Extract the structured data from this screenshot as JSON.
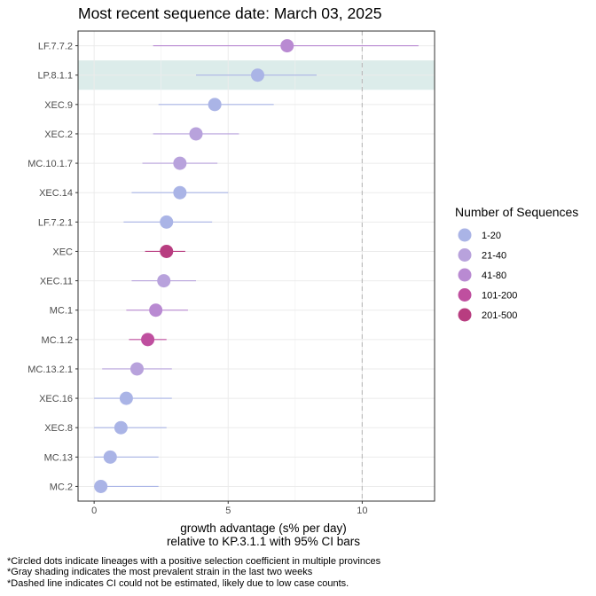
{
  "chart_data": {
    "type": "scatter",
    "title": "Most recent sequence date: March 03, 2025",
    "xlabel_lines": [
      "growth advantage (s% per day)",
      "relative to  KP.3.1.1  with 95% CI bars"
    ],
    "xlim": [
      -0.6,
      12.7
    ],
    "xticks": [
      0,
      5,
      10
    ],
    "x_tick_labels": [
      "0",
      "5",
      "10"
    ],
    "grid": true,
    "dashed_reference_x": 10,
    "highlight_lineage": "LP.8.1.1",
    "highlight_color": "#dcecea",
    "legend": {
      "title": "Number of Sequences",
      "placement": "right",
      "entries": [
        {
          "label": "1-20",
          "color": "#aab4e6"
        },
        {
          "label": "21-40",
          "color": "#b8a2dc"
        },
        {
          "label": "41-80",
          "color": "#b98ad2"
        },
        {
          "label": "101-200",
          "color": "#bf4f9f"
        },
        {
          "label": "201-500",
          "color": "#b83d80"
        }
      ]
    },
    "points": [
      {
        "lineage": "LF.7.7.2",
        "estimate": 7.2,
        "ci_low": 2.2,
        "ci_high": 12.1,
        "seq_bin": "41-80"
      },
      {
        "lineage": "LP.8.1.1",
        "estimate": 6.1,
        "ci_low": 3.8,
        "ci_high": 8.3,
        "seq_bin": "1-20"
      },
      {
        "lineage": "XEC.9",
        "estimate": 4.5,
        "ci_low": 2.4,
        "ci_high": 6.7,
        "seq_bin": "1-20"
      },
      {
        "lineage": "XEC.2",
        "estimate": 3.8,
        "ci_low": 2.2,
        "ci_high": 5.4,
        "seq_bin": "21-40"
      },
      {
        "lineage": "MC.10.1.7",
        "estimate": 3.2,
        "ci_low": 1.8,
        "ci_high": 4.6,
        "seq_bin": "21-40"
      },
      {
        "lineage": "XEC.14",
        "estimate": 3.2,
        "ci_low": 1.4,
        "ci_high": 5.0,
        "seq_bin": "1-20"
      },
      {
        "lineage": "LF.7.2.1",
        "estimate": 2.7,
        "ci_low": 1.1,
        "ci_high": 4.4,
        "seq_bin": "1-20"
      },
      {
        "lineage": "XEC",
        "estimate": 2.7,
        "ci_low": 1.9,
        "ci_high": 3.4,
        "seq_bin": "201-500"
      },
      {
        "lineage": "XEC.11",
        "estimate": 2.6,
        "ci_low": 1.4,
        "ci_high": 3.8,
        "seq_bin": "21-40"
      },
      {
        "lineage": "MC.1",
        "estimate": 2.3,
        "ci_low": 1.2,
        "ci_high": 3.5,
        "seq_bin": "41-80"
      },
      {
        "lineage": "MC.1.2",
        "estimate": 2.0,
        "ci_low": 1.3,
        "ci_high": 2.7,
        "seq_bin": "101-200"
      },
      {
        "lineage": "MC.13.2.1",
        "estimate": 1.6,
        "ci_low": 0.3,
        "ci_high": 2.9,
        "seq_bin": "21-40"
      },
      {
        "lineage": "XEC.16",
        "estimate": 1.2,
        "ci_low": 0.0,
        "ci_high": 2.9,
        "seq_bin": "1-20"
      },
      {
        "lineage": "XEC.8",
        "estimate": 1.0,
        "ci_low": 0.0,
        "ci_high": 2.7,
        "seq_bin": "1-20"
      },
      {
        "lineage": "MC.13",
        "estimate": 0.6,
        "ci_low": 0.0,
        "ci_high": 2.4,
        "seq_bin": "1-20"
      },
      {
        "lineage": "MC.2",
        "estimate": 0.25,
        "ci_low": 0.0,
        "ci_high": 2.4,
        "seq_bin": "1-20"
      }
    ]
  },
  "footnotes": [
    "*Circled dots indicate lineages with a positive selection coefficient in multiple provinces",
    "*Gray shading indicates the most prevalent strain in the last two weeks",
    "*Dashed line indicates CI could not be estimated, likely due to low case counts."
  ]
}
